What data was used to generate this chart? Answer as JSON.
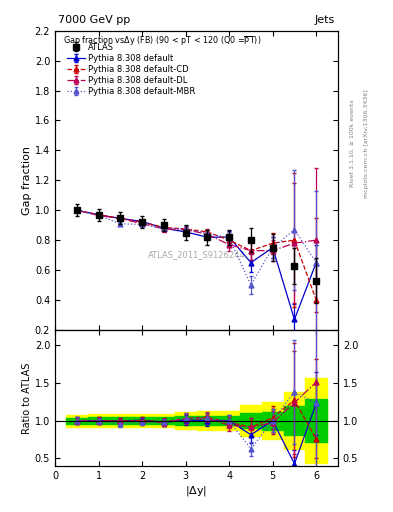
{
  "title_top": "7000 GeV pp",
  "title_right": "Jets",
  "watermark": "ATLAS_2011_S9126244",
  "xlabel": "|$\\Delta$y|",
  "ylabel_main": "Gap fraction",
  "ylabel_ratio": "Ratio to ATLAS",
  "right_label": "Rivet 3.1.10, ≥ 100k events",
  "right_label2": "mcplots.cern.ch [arXiv:1306.3436]",
  "xlim": [
    0,
    6.5
  ],
  "ylim_main": [
    0.2,
    2.2
  ],
  "ylim_ratio": [
    0.4,
    2.2
  ],
  "yticks_main": [
    0.2,
    0.4,
    0.6,
    0.8,
    1.0,
    1.2,
    1.4,
    1.6,
    1.8,
    2.0,
    2.2
  ],
  "yticks_ratio": [
    0.5,
    1.0,
    1.5,
    2.0
  ],
  "atlas_x": [
    0.5,
    1.0,
    1.5,
    2.0,
    2.5,
    3.0,
    3.5,
    4.0,
    4.5,
    5.0,
    5.5,
    6.0
  ],
  "atlas_y": [
    1.0,
    0.97,
    0.95,
    0.92,
    0.9,
    0.85,
    0.82,
    0.82,
    0.8,
    0.75,
    0.63,
    0.53
  ],
  "atlas_yerr": [
    0.04,
    0.04,
    0.04,
    0.04,
    0.04,
    0.05,
    0.05,
    0.05,
    0.08,
    0.09,
    0.12,
    0.15
  ],
  "py_default_x": [
    0.5,
    1.0,
    1.5,
    2.0,
    2.5,
    3.0,
    3.5,
    4.0,
    4.5,
    5.0,
    5.5,
    6.0
  ],
  "py_default_y": [
    1.0,
    0.97,
    0.945,
    0.925,
    0.88,
    0.855,
    0.82,
    0.82,
    0.65,
    0.75,
    0.27,
    0.65
  ],
  "py_default_yerr": [
    0.01,
    0.01,
    0.01,
    0.01,
    0.02,
    0.02,
    0.02,
    0.04,
    0.06,
    0.07,
    0.1,
    0.12
  ],
  "py_cd_x": [
    0.5,
    1.0,
    1.5,
    2.0,
    2.5,
    3.0,
    3.5,
    4.0,
    4.5,
    5.0,
    5.5,
    6.0
  ],
  "py_cd_y": [
    1.0,
    0.97,
    0.945,
    0.92,
    0.885,
    0.875,
    0.855,
    0.8,
    0.73,
    0.78,
    0.8,
    0.4
  ],
  "py_cd_yerr": [
    0.01,
    0.01,
    0.01,
    0.01,
    0.02,
    0.02,
    0.02,
    0.04,
    0.06,
    0.07,
    0.45,
    0.55
  ],
  "py_dl_x": [
    0.5,
    1.0,
    1.5,
    2.0,
    2.5,
    3.0,
    3.5,
    4.0,
    4.5,
    5.0,
    5.5,
    6.0
  ],
  "py_dl_y": [
    1.0,
    0.965,
    0.945,
    0.91,
    0.875,
    0.87,
    0.84,
    0.77,
    0.73,
    0.73,
    0.78,
    0.8
  ],
  "py_dl_yerr": [
    0.01,
    0.01,
    0.01,
    0.01,
    0.02,
    0.02,
    0.02,
    0.04,
    0.06,
    0.07,
    0.4,
    0.48
  ],
  "py_mbr_x": [
    0.5,
    1.0,
    1.5,
    2.0,
    2.5,
    3.0,
    3.5,
    4.0,
    4.5,
    5.0,
    5.5,
    6.0
  ],
  "py_mbr_y": [
    1.0,
    0.965,
    0.91,
    0.905,
    0.88,
    0.875,
    0.845,
    0.815,
    0.5,
    0.75,
    0.87,
    0.65
  ],
  "py_mbr_yerr": [
    0.01,
    0.01,
    0.01,
    0.01,
    0.02,
    0.02,
    0.02,
    0.04,
    0.06,
    0.07,
    0.4,
    0.48
  ],
  "color_atlas": "#000000",
  "color_default": "#0000cc",
  "color_cd": "#cc0000",
  "color_dl": "#bb0055",
  "color_mbr": "#5555cc",
  "band_green": "#00cc00",
  "band_yellow": "#ffff00"
}
